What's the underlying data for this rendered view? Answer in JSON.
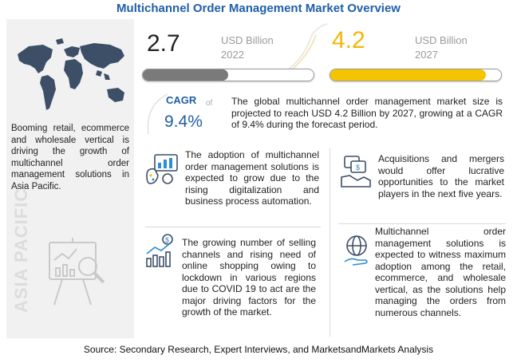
{
  "title": "Multichannel Order Management Market Overview",
  "market": {
    "value_2022": "2.7",
    "unit_2022": "USD Billion",
    "year_2022": "2022",
    "value_2027": "4.2",
    "unit_2027": "USD Billion",
    "year_2027": "2027",
    "bar_2022_fill": 0.5,
    "bar_2027_fill": 0.91,
    "bar_2022_color": "#7a7a7a",
    "bar_2027_color": "#f5c400"
  },
  "cagr": {
    "label": "CAGR",
    "of": "of",
    "value": "9.4%",
    "description": "The global multichannel order management market size is projected to reach USD 4.2 Billion by 2027, growing at a CAGR of 9.4% during the forecast period."
  },
  "left": {
    "text": "Booming retail, ecommerce and wholesale vertical is driving the growth of multichannel order management solutions in Asia Pacific.",
    "region_label": "ASIA PACIFIC",
    "icon_map": "world-map-icon",
    "icon_chart": "presentation-analytics-icon"
  },
  "points": [
    {
      "icon": "analytics-palette-icon",
      "text": "The adoption of multichannel order management solutions is expected to grow due to the rising digitalization and business process automation."
    },
    {
      "icon": "handshake-money-icon",
      "text": "Acquisitions and mergers would offer lucrative opportunities to the market players in the next five years."
    },
    {
      "icon": "growth-bars-dollar-icon",
      "text": "The growing number of selling channels and rising need of online shopping owing to lockdown in various regions due to COVID 19 to act are the major driving factors for the growth of the market."
    },
    {
      "icon": "globe-hand-icon",
      "text": "Multichannel order management solutions is expected to witness maximum adoption among the retail, ecommerce, and wholesale vertical, as the solutions help managing the orders from numerous channels."
    }
  ],
  "source": "Source: Secondary Research, Expert Interviews, and MarketsandMarkets Analysis",
  "colors": {
    "accent_blue": "#1f5fa8",
    "accent_yellow": "#f2b705"
  }
}
